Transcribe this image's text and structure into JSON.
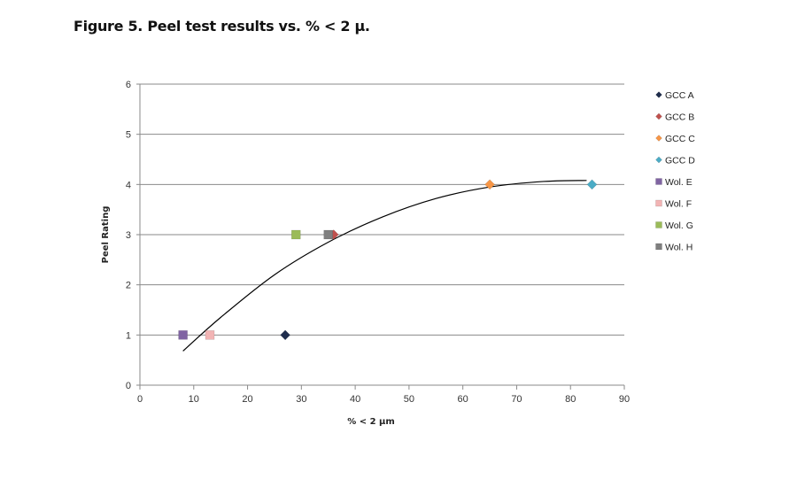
{
  "figure": {
    "caption": "Figure 5. Peel test results vs. % < 2 μ."
  },
  "chart_data": {
    "type": "scatter",
    "title": "",
    "xlabel": "% < 2 µm",
    "ylabel": "Peel Rating",
    "xlim": [
      0,
      90
    ],
    "ylim": [
      0,
      6
    ],
    "xticks": [
      0,
      10,
      20,
      30,
      40,
      50,
      60,
      70,
      80,
      90
    ],
    "yticks": [
      0,
      1,
      2,
      3,
      4,
      5,
      6
    ],
    "grid": "horizontal",
    "legend_position": "right",
    "series": [
      {
        "name": "GCC A",
        "marker": "diamond",
        "color": "#1f2d4d",
        "points": [
          [
            27,
            1
          ]
        ]
      },
      {
        "name": "GCC B",
        "marker": "diamond",
        "color": "#c0504d",
        "points": [
          [
            36,
            3
          ]
        ]
      },
      {
        "name": "GCC C",
        "marker": "diamond",
        "color": "#f79646",
        "points": [
          [
            65,
            4
          ]
        ]
      },
      {
        "name": "GCC D",
        "marker": "diamond",
        "color": "#4bacc6",
        "points": [
          [
            84,
            4
          ]
        ]
      },
      {
        "name": "Wol. E",
        "marker": "square",
        "color": "#8064a2",
        "points": [
          [
            8,
            1
          ]
        ]
      },
      {
        "name": "Wol. F",
        "marker": "square",
        "color": "#f2b4b4",
        "points": [
          [
            13,
            1
          ]
        ]
      },
      {
        "name": "Wol. G",
        "marker": "square",
        "color": "#9bbb59",
        "points": [
          [
            29,
            3
          ]
        ]
      },
      {
        "name": "Wol. H",
        "marker": "square",
        "color": "#7f7f7f",
        "points": [
          [
            35,
            3
          ]
        ]
      }
    ],
    "trendline": {
      "type": "polynomial",
      "color": "#000000",
      "points": [
        [
          8,
          0.68
        ],
        [
          15,
          1.35
        ],
        [
          25,
          2.2
        ],
        [
          35,
          2.85
        ],
        [
          45,
          3.35
        ],
        [
          55,
          3.72
        ],
        [
          65,
          3.95
        ],
        [
          75,
          4.06
        ],
        [
          83,
          4.08
        ]
      ]
    }
  }
}
